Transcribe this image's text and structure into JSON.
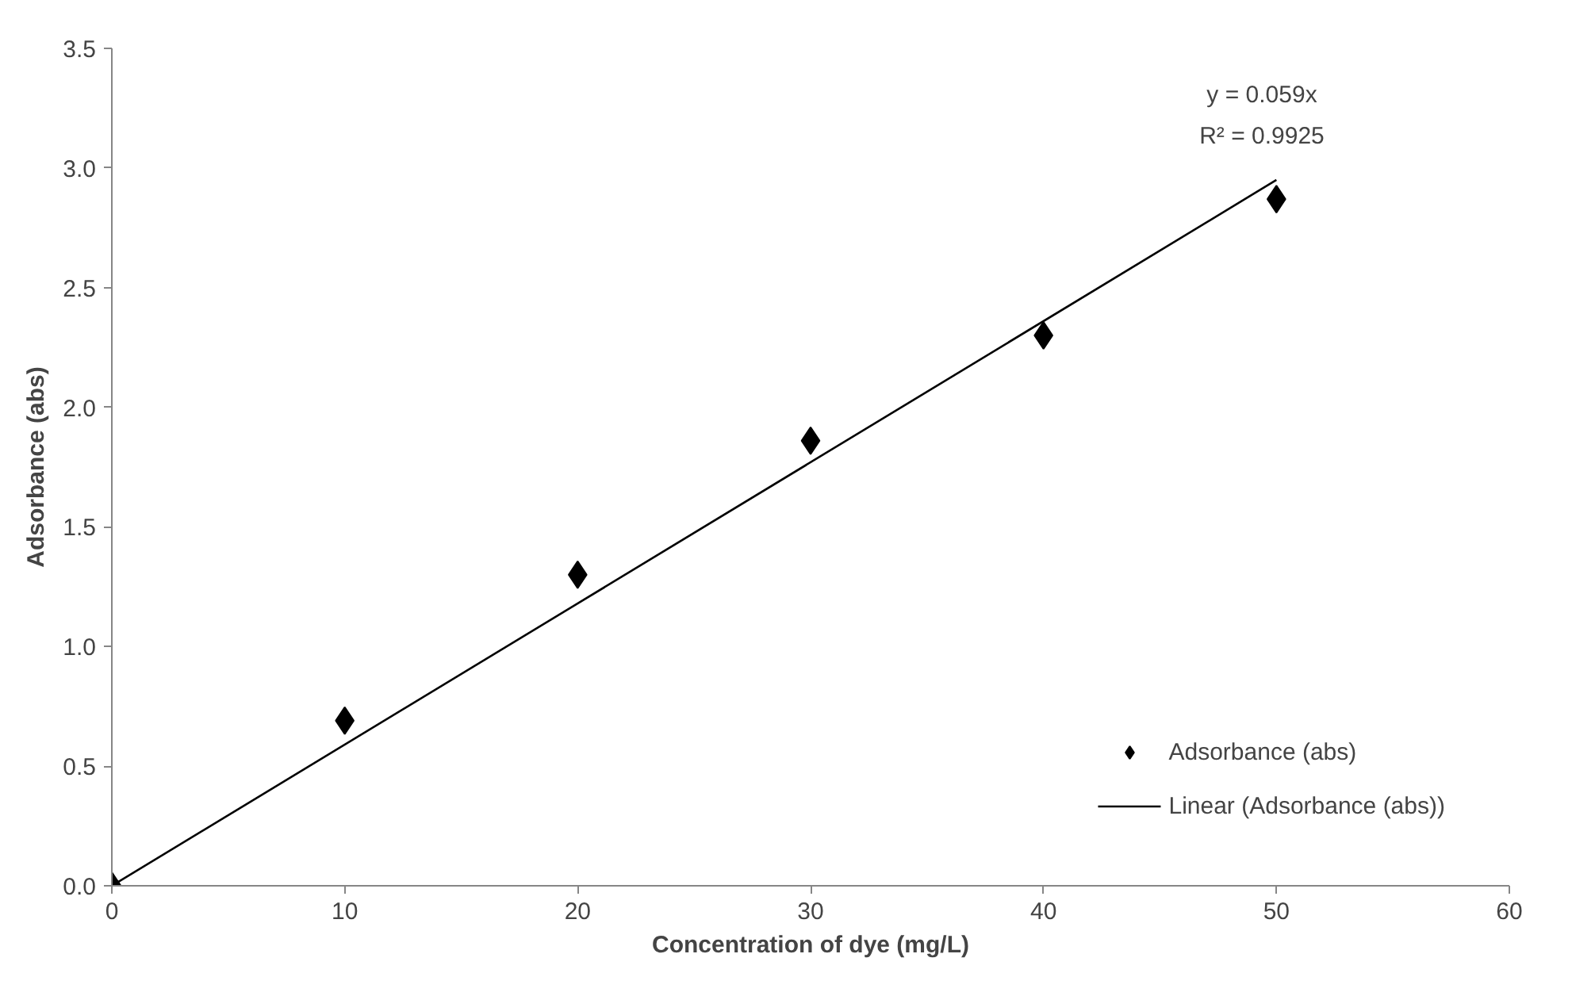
{
  "chart_data": {
    "type": "scatter",
    "xlabel": "Concentration of dye (mg/L)",
    "ylabel": "Adsorbance (abs)",
    "x": [
      0,
      10,
      20,
      30,
      40,
      50
    ],
    "series": [
      {
        "name": "Adsorbance (abs)",
        "color": "#000000",
        "marker": "diamond",
        "values": [
          0,
          0.69,
          1.3,
          1.86,
          2.3,
          2.87
        ]
      },
      {
        "name": "Linear (Adsorbance (abs))",
        "type": "line",
        "color": "#000000",
        "line_style": "solid",
        "marker": "none",
        "x": [
          0,
          50
        ],
        "values": [
          0,
          2.95
        ]
      }
    ],
    "xlim": [
      0,
      60
    ],
    "xticks": [
      0,
      10,
      20,
      30,
      40,
      50,
      60
    ],
    "ylim": [
      0,
      3.5
    ],
    "yticks": [
      {
        "value": 0,
        "label": "0.0"
      },
      {
        "value": 0.5,
        "label": "0.5"
      },
      {
        "value": 1,
        "label": "1.0"
      },
      {
        "value": 1.5,
        "label": "1.5"
      },
      {
        "value": 2,
        "label": "2.0"
      },
      {
        "value": 2.5,
        "label": "2.5"
      },
      {
        "value": 3,
        "label": "3.0"
      },
      {
        "value": 3.5,
        "label": "3.5"
      }
    ],
    "annotations": [
      "y = 0.059x",
      "R² = 0.9925"
    ],
    "grid": false,
    "legend": "bottom right"
  }
}
